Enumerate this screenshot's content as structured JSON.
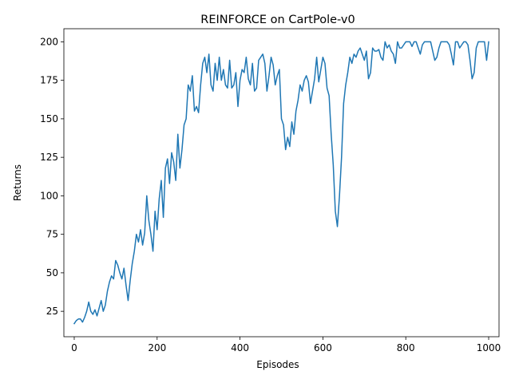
{
  "chart_data": {
    "type": "line",
    "title": "REINFORCE on CartPole-v0",
    "xlabel": "Episodes",
    "ylabel": "Returns",
    "xlim": [
      -25,
      1025
    ],
    "ylim": [
      8.5,
      208.5
    ],
    "xticks": [
      0,
      200,
      400,
      600,
      800,
      1000
    ],
    "yticks": [
      25,
      50,
      75,
      100,
      125,
      150,
      175,
      200
    ],
    "grid": false,
    "legend": "none",
    "series": [
      {
        "color": "#1f77b4",
        "x": [
          0,
          5,
          10,
          15,
          20,
          25,
          30,
          35,
          40,
          45,
          50,
          55,
          60,
          65,
          70,
          75,
          80,
          85,
          90,
          95,
          100,
          105,
          110,
          115,
          120,
          125,
          130,
          135,
          140,
          145,
          150,
          155,
          160,
          165,
          170,
          175,
          180,
          185,
          190,
          195,
          200,
          205,
          210,
          215,
          220,
          225,
          230,
          235,
          240,
          245,
          250,
          255,
          260,
          265,
          270,
          275,
          280,
          285,
          290,
          295,
          300,
          305,
          310,
          315,
          320,
          325,
          330,
          335,
          340,
          345,
          350,
          355,
          360,
          365,
          370,
          375,
          380,
          385,
          390,
          395,
          400,
          405,
          410,
          415,
          420,
          425,
          430,
          435,
          440,
          445,
          450,
          455,
          460,
          465,
          470,
          475,
          480,
          485,
          490,
          495,
          500,
          505,
          510,
          515,
          520,
          525,
          530,
          535,
          540,
          545,
          550,
          555,
          560,
          565,
          570,
          575,
          580,
          585,
          590,
          595,
          600,
          605,
          610,
          615,
          620,
          625,
          630,
          635,
          640,
          645,
          650,
          655,
          660,
          665,
          670,
          675,
          680,
          685,
          690,
          695,
          700,
          705,
          710,
          715,
          720,
          725,
          730,
          735,
          740,
          745,
          750,
          755,
          760,
          765,
          770,
          775,
          780,
          785,
          790,
          795,
          800,
          805,
          810,
          815,
          820,
          825,
          830,
          835,
          840,
          845,
          850,
          855,
          860,
          865,
          870,
          875,
          880,
          885,
          890,
          895,
          900,
          905,
          910,
          915,
          920,
          925,
          930,
          935,
          940,
          945,
          950,
          955,
          960,
          965,
          970,
          975,
          980,
          985,
          990,
          995,
          1000
        ],
        "y": [
          17,
          19,
          20,
          20,
          18,
          21,
          25,
          31,
          25,
          23,
          26,
          22,
          27,
          32,
          25,
          29,
          38,
          44,
          48,
          46,
          58,
          55,
          50,
          46,
          53,
          42,
          32,
          45,
          56,
          64,
          75,
          70,
          78,
          68,
          76,
          100,
          84,
          75,
          64,
          90,
          78,
          98,
          110,
          86,
          118,
          124,
          108,
          128,
          122,
          110,
          140,
          118,
          130,
          146,
          150,
          172,
          168,
          178,
          155,
          158,
          154,
          172,
          186,
          190,
          180,
          192,
          172,
          168,
          186,
          175,
          190,
          175,
          182,
          172,
          170,
          188,
          170,
          172,
          180,
          158,
          175,
          182,
          180,
          190,
          176,
          172,
          186,
          168,
          170,
          188,
          190,
          192,
          186,
          168,
          178,
          190,
          185,
          172,
          178,
          182,
          150,
          146,
          130,
          138,
          132,
          148,
          140,
          155,
          162,
          172,
          168,
          175,
          178,
          174,
          160,
          168,
          176,
          190,
          174,
          182,
          190,
          186,
          170,
          165,
          140,
          120,
          90,
          80,
          100,
          125,
          160,
          172,
          180,
          190,
          186,
          192,
          190,
          194,
          196,
          192,
          188,
          194,
          176,
          180,
          196,
          194,
          194,
          195,
          190,
          188,
          200,
          196,
          198,
          194,
          192,
          186,
          200,
          196,
          196,
          198,
          200,
          200,
          200,
          197,
          200,
          200,
          196,
          192,
          198,
          200,
          200,
          200,
          200,
          194,
          188,
          190,
          196,
          200,
          200,
          200,
          200,
          198,
          192,
          185,
          200,
          200,
          196,
          198,
          200,
          200,
          198,
          188,
          176,
          180,
          196,
          200,
          200,
          200,
          200,
          188,
          200
        ]
      }
    ]
  }
}
